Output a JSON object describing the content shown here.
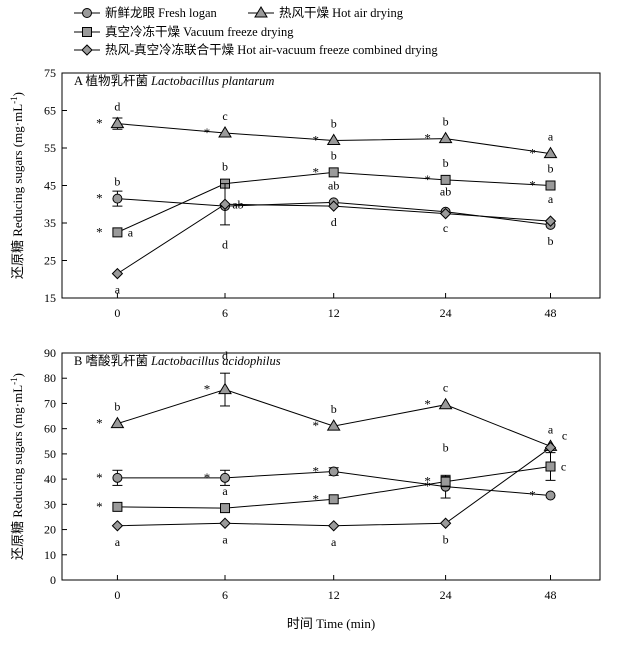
{
  "legend": [
    {
      "marker": "circle",
      "label": "新鲜龙眼 Fresh logan"
    },
    {
      "marker": "triangle",
      "label": "热风干燥 Hot air drying"
    },
    {
      "marker": "square",
      "label": "真空冷冻干燥 Vacuum freeze drying"
    },
    {
      "marker": "diamond",
      "label": "热风-真空冷冻联合干燥 Hot air-vacuum freeze combined drying"
    }
  ],
  "colors": {
    "marker_fill": "#9a9a9a",
    "line": "#000000"
  },
  "chart_data": [
    {
      "type": "line",
      "panel_letter": "A",
      "title_cn": "植物乳杆菌",
      "title_latin": "Lactobacillus plantarum",
      "ylabel_cn": "还原糖",
      "ylabel_en": "Reducing sugars (mg·mL",
      "ylabel_sup": "-1",
      "ylabel_end": ")",
      "ylim": [
        15,
        75
      ],
      "yticks": [
        15,
        25,
        35,
        45,
        55,
        65,
        75
      ],
      "categories": [
        "0",
        "6",
        "12",
        "24",
        "48"
      ],
      "series": [
        {
          "name": "新鲜龙眼 Fresh logan",
          "marker": "circle",
          "values": [
            41.5,
            39.5,
            40.5,
            38.0,
            34.5
          ],
          "errors": [
            2.0,
            0.8,
            0.8,
            0.8,
            0.8
          ],
          "annotations": [
            {
              "i": 0,
              "text": "b",
              "pos": "above"
            },
            {
              "i": 2,
              "text": "ab",
              "pos": "above"
            },
            {
              "i": 3,
              "text": "c",
              "pos": "below"
            },
            {
              "i": 4,
              "text": "b",
              "pos": "below"
            }
          ],
          "stars": [
            0
          ]
        },
        {
          "name": "热风干燥 Hot air drying",
          "marker": "triangle",
          "values": [
            61.5,
            59.0,
            57.0,
            57.5,
            53.5
          ],
          "errors": [
            1.5,
            0.8,
            0.8,
            0.8,
            0.8
          ],
          "annotations": [
            {
              "i": 0,
              "text": "d",
              "pos": "above"
            },
            {
              "i": 1,
              "text": "c",
              "pos": "above"
            },
            {
              "i": 2,
              "text": "b",
              "pos": "above"
            },
            {
              "i": 3,
              "text": "b",
              "pos": "above"
            },
            {
              "i": 4,
              "text": "a",
              "pos": "above"
            }
          ],
          "stars": [
            0,
            1,
            2,
            3,
            4
          ]
        },
        {
          "name": "真空冷冻干燥 Vacuum freeze drying",
          "marker": "square",
          "values": [
            32.5,
            45.5,
            48.5,
            46.5,
            45.0
          ],
          "errors": [
            0.6,
            0.8,
            0.8,
            0.8,
            0.8
          ],
          "annotations": [
            {
              "i": 0,
              "text": "a",
              "pos": "right"
            },
            {
              "i": 1,
              "text": "b",
              "pos": "above"
            },
            {
              "i": 2,
              "text": "b",
              "pos": "above"
            },
            {
              "i": 3,
              "text": "b",
              "pos": "above"
            },
            {
              "i": 4,
              "text": "b",
              "pos": "above"
            }
          ],
          "stars": [
            0,
            2,
            3,
            4
          ]
        },
        {
          "name": "热风-真空冷冻联合干燥 Hot air-vacuum freeze combined drying",
          "marker": "diamond",
          "values": [
            21.5,
            40.0,
            39.5,
            37.5,
            35.5
          ],
          "errors": [
            0.5,
            5.5,
            0.8,
            0.8,
            0.8
          ],
          "annotations": [
            {
              "i": 0,
              "text": "a",
              "pos": "below"
            },
            {
              "i": 1,
              "text": "ab",
              "pos": "right"
            },
            {
              "i": 1,
              "text": "d",
              "pos": "belowfar"
            },
            {
              "i": 2,
              "text": "d",
              "pos": "below"
            },
            {
              "i": 3,
              "text": "ab",
              "pos": "highabove"
            },
            {
              "i": 4,
              "text": "a",
              "pos": "highabove"
            }
          ],
          "stars": []
        }
      ]
    },
    {
      "type": "line",
      "panel_letter": "B",
      "title_cn": "嗜酸乳杆菌",
      "title_latin": "Lactobacillus acidophilus",
      "ylabel_cn": "还原糖",
      "ylabel_en": "Reducing sugars (mg·mL",
      "ylabel_sup": "-1",
      "ylabel_end": ")",
      "xlabel_cn": "时间",
      "xlabel_en": "Time (min)",
      "ylim": [
        0,
        90
      ],
      "yticks": [
        0,
        10,
        20,
        30,
        40,
        50,
        60,
        70,
        80,
        90
      ],
      "categories": [
        "0",
        "6",
        "12",
        "24",
        "48"
      ],
      "series": [
        {
          "name": "新鲜龙眼 Fresh logan",
          "marker": "circle",
          "values": [
            40.5,
            40.5,
            43.0,
            37.0,
            33.5
          ],
          "errors": [
            3.0,
            3.0,
            1.5,
            4.5,
            0.8
          ],
          "annotations": [],
          "stars": [
            0,
            1,
            2,
            3,
            4
          ]
        },
        {
          "name": "热风干燥 Hot air drying",
          "marker": "triangle",
          "values": [
            62.0,
            75.5,
            61.0,
            69.5,
            53.0
          ],
          "errors": [
            1.0,
            6.5,
            1.0,
            1.0,
            1.0
          ],
          "annotations": [
            {
              "i": 0,
              "text": "b",
              "pos": "above"
            },
            {
              "i": 1,
              "text": "d",
              "pos": "abovefar"
            },
            {
              "i": 2,
              "text": "b",
              "pos": "above"
            },
            {
              "i": 3,
              "text": "c",
              "pos": "above"
            },
            {
              "i": 4,
              "text": "a",
              "pos": "above"
            }
          ],
          "stars": [
            0,
            1,
            2,
            3
          ]
        },
        {
          "name": "真空冷冻干燥 Vacuum freeze drying",
          "marker": "square",
          "values": [
            29.0,
            28.5,
            32.0,
            39.0,
            45.0
          ],
          "errors": [
            1.0,
            1.5,
            1.0,
            2.0,
            5.5
          ],
          "annotations": [
            {
              "i": 1,
              "text": "a",
              "pos": "above"
            },
            {
              "i": 3,
              "text": "b",
              "pos": "abovefar"
            },
            {
              "i": 4,
              "text": "c",
              "pos": "right"
            }
          ],
          "stars": [
            0,
            2,
            3
          ]
        },
        {
          "name": "热风-真空冷冻联合干燥 Hot air-vacuum freeze combined drying",
          "marker": "diamond",
          "values": [
            21.5,
            22.5,
            21.5,
            22.5,
            52.5
          ],
          "errors": [
            0.5,
            0.5,
            0.5,
            0.5,
            0.8
          ],
          "annotations": [
            {
              "i": 0,
              "text": "a",
              "pos": "below"
            },
            {
              "i": 1,
              "text": "a",
              "pos": "below"
            },
            {
              "i": 2,
              "text": "a",
              "pos": "below"
            },
            {
              "i": 3,
              "text": "b",
              "pos": "below"
            },
            {
              "i": 4,
              "text": "c",
              "pos": "rightup"
            }
          ],
          "stars": []
        }
      ]
    }
  ]
}
